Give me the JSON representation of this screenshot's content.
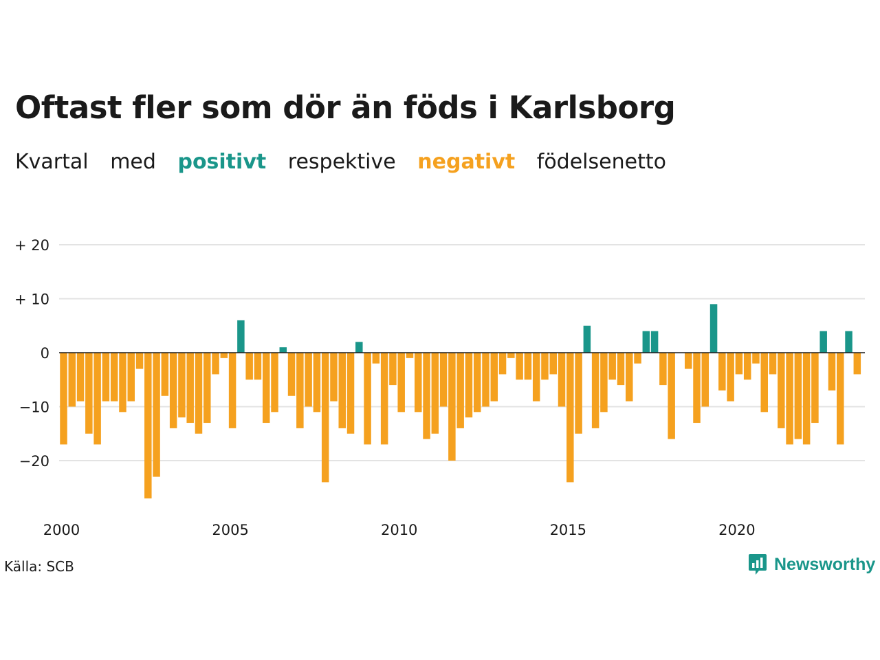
{
  "title": "Oftast fler som dör än föds i Karlsborg",
  "subtitle": {
    "w1": "Kvartal",
    "w2": "med",
    "pos": "positivt",
    "w3": "respektive",
    "neg": "negativt",
    "w4": "födelsenetto"
  },
  "source": "Källa: SCB",
  "brand": "Newsworthy",
  "colors": {
    "positive": "#1a968a",
    "negative": "#f5a11f",
    "grid": "#e3e3e3",
    "zero": "#1a1a1a"
  },
  "chart_data": {
    "type": "bar",
    "title": "",
    "xlabel": "",
    "ylabel": "",
    "x_start_year": 2000,
    "periods_per_year": 4,
    "x_ticks": [
      2000,
      2005,
      2010,
      2015,
      2020
    ],
    "y_ticks": [
      {
        "value": 20,
        "label": "+ 20"
      },
      {
        "value": 10,
        "label": "+ 10"
      },
      {
        "value": 0,
        "label": "0"
      },
      {
        "value": -10,
        "label": "−10"
      },
      {
        "value": -20,
        "label": "−20"
      }
    ],
    "ylim": [
      -28,
      20
    ],
    "grid": true,
    "values": [
      -17,
      -10,
      -9,
      -15,
      -17,
      -9,
      -9,
      -11,
      -9,
      -3,
      -27,
      -23,
      -8,
      -14,
      -12,
      -13,
      -15,
      -13,
      -4,
      -1,
      -14,
      6,
      -5,
      -5,
      -13,
      -11,
      1,
      -8,
      -14,
      -10,
      -11,
      -24,
      -9,
      -14,
      -15,
      2,
      -17,
      -2,
      -17,
      -6,
      -11,
      -1,
      -11,
      -16,
      -15,
      -10,
      -20,
      -14,
      -12,
      -11,
      -10,
      -9,
      -4,
      -1,
      -5,
      -5,
      -9,
      -5,
      -4,
      -10,
      -24,
      -15,
      5,
      -14,
      -11,
      -5,
      -6,
      -9,
      -2,
      4,
      4,
      -6,
      -16,
      0,
      -3,
      -13,
      -10,
      9,
      -7,
      -9,
      -4,
      -5,
      -2,
      -11,
      -4,
      -14,
      -17,
      -16,
      -17,
      -13,
      4,
      -7,
      -17,
      4,
      -4
    ]
  }
}
